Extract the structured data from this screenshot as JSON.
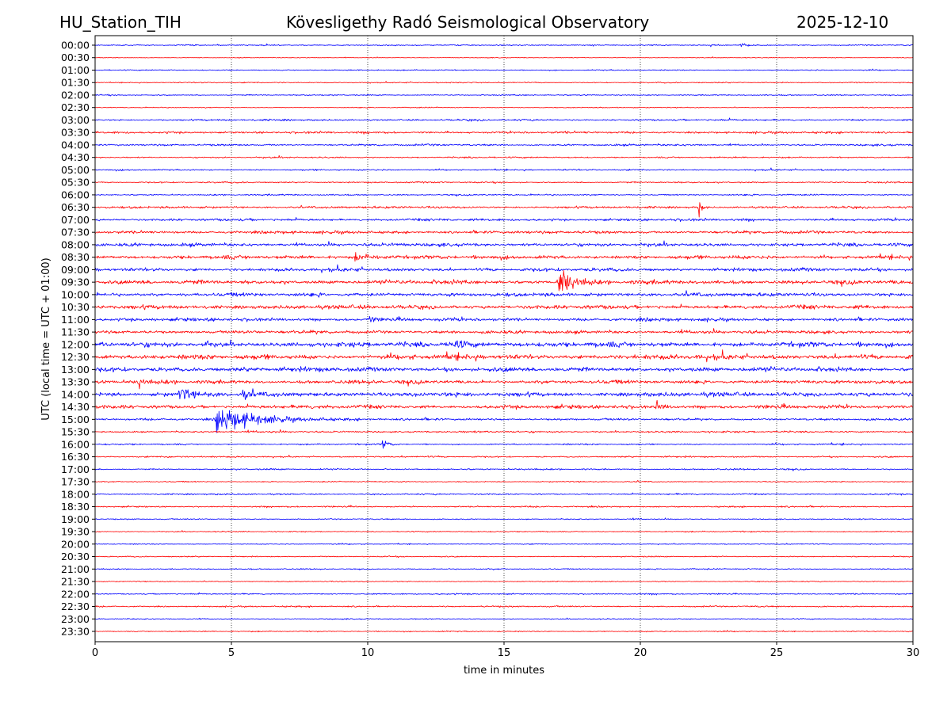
{
  "header": {
    "station": "HU_Station_TIH",
    "observatory": "Kövesligethy Radó Seismological Observatory",
    "date": "2025-12-10"
  },
  "chart_data": {
    "type": "line",
    "title": "Kövesligethy Radó Seismological Observatory",
    "xlabel": "time in minutes",
    "ylabel": "UTC (local time = UTC + 01:00)",
    "xlim": [
      0,
      30
    ],
    "xticks": [
      "0",
      "5",
      "10",
      "15",
      "20",
      "25",
      "30"
    ],
    "grid": "vertical dotted at every 5 minutes",
    "colors": [
      "#0000ff",
      "#ff0000"
    ],
    "rows": [
      {
        "label": "00:00",
        "noise": 0.3
      },
      {
        "label": "00:30",
        "noise": 0.2
      },
      {
        "label": "01:00",
        "noise": 0.3
      },
      {
        "label": "01:30",
        "noise": 0.3
      },
      {
        "label": "02:00",
        "noise": 0.3
      },
      {
        "label": "02:30",
        "noise": 0.25
      },
      {
        "label": "03:00",
        "noise": 0.5
      },
      {
        "label": "03:30",
        "noise": 0.6
      },
      {
        "label": "04:00",
        "noise": 0.5
      },
      {
        "label": "04:30",
        "noise": 0.4
      },
      {
        "label": "05:00",
        "noise": 0.4
      },
      {
        "label": "05:30",
        "noise": 0.4
      },
      {
        "label": "06:00",
        "noise": 0.4
      },
      {
        "label": "06:30",
        "noise": 0.6
      },
      {
        "label": "07:00",
        "noise": 0.7
      },
      {
        "label": "07:30",
        "noise": 0.8
      },
      {
        "label": "08:00",
        "noise": 0.9
      },
      {
        "label": "08:30",
        "noise": 1.0
      },
      {
        "label": "09:00",
        "noise": 0.9
      },
      {
        "label": "09:30",
        "noise": 1.1
      },
      {
        "label": "10:00",
        "noise": 1.0
      },
      {
        "label": "10:30",
        "noise": 1.1
      },
      {
        "label": "11:00",
        "noise": 0.9
      },
      {
        "label": "11:30",
        "noise": 0.9
      },
      {
        "label": "12:00",
        "noise": 1.3
      },
      {
        "label": "12:30",
        "noise": 1.3
      },
      {
        "label": "13:00",
        "noise": 1.2
      },
      {
        "label": "13:30",
        "noise": 1.0
      },
      {
        "label": "14:00",
        "noise": 1.2
      },
      {
        "label": "14:30",
        "noise": 1.0
      },
      {
        "label": "15:00",
        "noise": 0.6
      },
      {
        "label": "15:30",
        "noise": 0.5
      },
      {
        "label": "16:00",
        "noise": 0.4
      },
      {
        "label": "16:30",
        "noise": 0.4
      },
      {
        "label": "17:00",
        "noise": 0.4
      },
      {
        "label": "17:30",
        "noise": 0.3
      },
      {
        "label": "18:00",
        "noise": 0.4
      },
      {
        "label": "18:30",
        "noise": 0.4
      },
      {
        "label": "19:00",
        "noise": 0.3
      },
      {
        "label": "19:30",
        "noise": 0.3
      },
      {
        "label": "20:00",
        "noise": 0.25
      },
      {
        "label": "20:30",
        "noise": 0.3
      },
      {
        "label": "21:00",
        "noise": 0.3
      },
      {
        "label": "21:30",
        "noise": 0.25
      },
      {
        "label": "22:00",
        "noise": 0.35
      },
      {
        "label": "22:30",
        "noise": 0.4
      },
      {
        "label": "23:00",
        "noise": 0.25
      },
      {
        "label": "23:30",
        "noise": 0.3
      }
    ],
    "events": [
      {
        "row": "00:00",
        "minute": 23.7,
        "amplitude": 2.5,
        "duration": 0.6
      },
      {
        "row": "06:30",
        "minute": 22.15,
        "amplitude": 12,
        "duration": 0.25
      },
      {
        "row": "08:30",
        "minute": 9.55,
        "amplitude": 5,
        "duration": 1.2
      },
      {
        "row": "09:30",
        "minute": 17.0,
        "amplitude": 22,
        "duration": 1.0
      },
      {
        "row": "11:00",
        "minute": 10.0,
        "amplitude": 5,
        "duration": 0.5
      },
      {
        "row": "12:00",
        "minute": 4.05,
        "amplitude": 7,
        "duration": 0.2
      },
      {
        "row": "12:00",
        "minute": 13.0,
        "amplitude": 4,
        "duration": 2.0
      },
      {
        "row": "13:30",
        "minute": 1.6,
        "amplitude": 8,
        "duration": 0.3
      },
      {
        "row": "14:00",
        "minute": 3.1,
        "amplitude": 9,
        "duration": 0.8
      },
      {
        "row": "14:00",
        "minute": 5.45,
        "amplitude": 11,
        "duration": 0.3
      },
      {
        "row": "14:30",
        "minute": 20.6,
        "amplitude": 5,
        "duration": 0.6
      },
      {
        "row": "15:00",
        "minute": 4.45,
        "amplitude": 16,
        "duration": 3.5
      },
      {
        "row": "16:00",
        "minute": 10.55,
        "amplitude": 7,
        "duration": 0.4
      },
      {
        "row": "16:30",
        "minute": 2.7,
        "amplitude": 3,
        "duration": 0.2
      }
    ]
  }
}
